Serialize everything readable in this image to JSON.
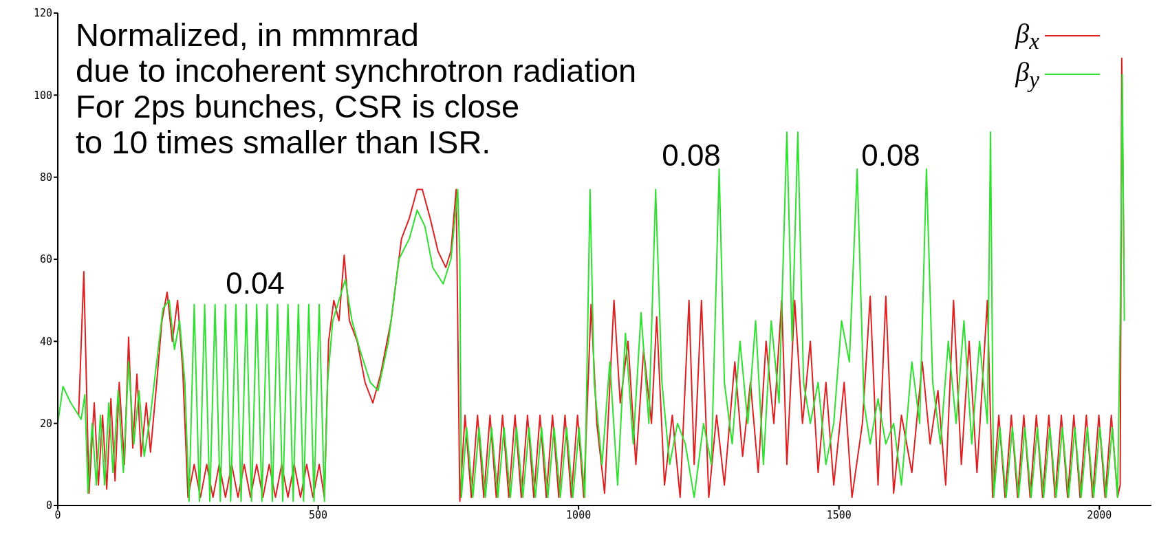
{
  "chart_data": {
    "type": "line",
    "xlim": [
      0,
      2100
    ],
    "xticks": [
      0,
      500,
      1000,
      1500,
      2000
    ],
    "ylim": [
      0,
      120
    ],
    "yticks": [
      0,
      20,
      40,
      60,
      80,
      100,
      120
    ],
    "grid": false,
    "legend": "top right",
    "marker": "none",
    "line_style": "solid",
    "annotations": [
      "Normalized, in mmmrad",
      "due to incoherent synchrotron radiation",
      "For 2ps bunches, CSR is close",
      "to 10 times smaller than ISR.",
      "0.04",
      "0.08",
      "0.08"
    ],
    "series": [
      {
        "name": "β$_{x}$",
        "color": "#e02020",
        "x": [
          40,
          50,
          55,
          60,
          70,
          78,
          86,
          94,
          102,
          110,
          118,
          128,
          136,
          144,
          152,
          160,
          170,
          178,
          190,
          200,
          210,
          220,
          230,
          240,
          250,
          262,
          274,
          286,
          298,
          310,
          322,
          334,
          346,
          358,
          370,
          382,
          394,
          406,
          418,
          430,
          442,
          454,
          466,
          478,
          490,
          502,
          512,
          520,
          530,
          540,
          550,
          560,
          575,
          590,
          605,
          620,
          640,
          660,
          675,
          690,
          700,
          715,
          730,
          745,
          755,
          765,
          772,
          782,
          794,
          806,
          818,
          830,
          842,
          854,
          866,
          878,
          890,
          902,
          914,
          926,
          938,
          950,
          962,
          974,
          986,
          998,
          1010,
          1024,
          1035,
          1050,
          1068,
          1080,
          1095,
          1110,
          1125,
          1140,
          1150,
          1165,
          1180,
          1195,
          1212,
          1222,
          1236,
          1250,
          1265,
          1280,
          1300,
          1315,
          1330,
          1345,
          1360,
          1375,
          1390,
          1400,
          1415,
          1430,
          1445,
          1460,
          1475,
          1490,
          1510,
          1525,
          1545,
          1560,
          1575,
          1590,
          1605,
          1620,
          1640,
          1660,
          1675,
          1690,
          1705,
          1720,
          1735,
          1750,
          1765,
          1785,
          1795,
          1807,
          1819,
          1831,
          1843,
          1855,
          1867,
          1879,
          1891,
          1903,
          1915,
          1927,
          1939,
          1951,
          1963,
          1975,
          1987,
          1999,
          2011,
          2023,
          2035,
          2040,
          2043,
          2047
        ],
        "values": [
          22,
          57,
          30,
          3,
          25,
          5,
          22,
          4,
          26,
          6,
          30,
          10,
          41,
          14,
          32,
          12,
          25,
          13,
          30,
          45,
          52,
          40,
          50,
          33,
          2,
          10,
          2,
          10,
          2,
          10,
          2,
          10,
          2,
          10,
          2,
          10,
          2,
          10,
          2,
          10,
          2,
          10,
          2,
          10,
          2,
          10,
          2,
          40,
          50,
          45,
          61,
          45,
          40,
          30,
          25,
          32,
          45,
          65,
          70,
          77,
          77,
          70,
          62,
          58,
          62,
          77,
          1,
          22,
          2,
          22,
          2,
          22,
          2,
          22,
          2,
          22,
          2,
          22,
          2,
          22,
          2,
          22,
          2,
          22,
          2,
          22,
          2,
          49,
          20,
          3,
          50,
          25,
          40,
          10,
          38,
          20,
          46,
          5,
          22,
          2,
          50,
          10,
          50,
          2,
          22,
          5,
          35,
          12,
          30,
          8,
          40,
          20,
          50,
          10,
          50,
          20,
          40,
          8,
          30,
          5,
          30,
          2,
          20,
          51,
          5,
          51,
          3,
          22,
          8,
          35,
          15,
          28,
          5,
          50,
          10,
          40,
          8,
          50,
          2,
          22,
          2,
          22,
          2,
          22,
          2,
          22,
          2,
          22,
          2,
          22,
          2,
          22,
          2,
          22,
          2,
          22,
          2,
          22,
          2,
          5,
          109,
          60
        ]
      },
      {
        "name": "β$_{y}$",
        "color": "#30e030",
        "x": [
          0,
          10,
          25,
          45,
          52,
          58,
          66,
          74,
          82,
          90,
          98,
          106,
          116,
          126,
          136,
          146,
          156,
          166,
          178,
          190,
          202,
          214,
          224,
          234,
          244,
          252,
          262,
          272,
          282,
          292,
          302,
          312,
          322,
          332,
          342,
          352,
          362,
          372,
          382,
          392,
          402,
          412,
          422,
          432,
          442,
          452,
          462,
          472,
          482,
          492,
          502,
          512,
          518,
          528,
          540,
          552,
          565,
          580,
          600,
          615,
          635,
          655,
          675,
          690,
          705,
          720,
          740,
          755,
          768,
          772,
          775,
          785,
          797,
          809,
          821,
          833,
          845,
          857,
          869,
          881,
          893,
          905,
          917,
          929,
          941,
          953,
          965,
          977,
          989,
          1001,
          1012,
          1022,
          1030,
          1045,
          1060,
          1075,
          1090,
          1105,
          1120,
          1135,
          1148,
          1160,
          1175,
          1190,
          1205,
          1222,
          1240,
          1255,
          1270,
          1280,
          1295,
          1310,
          1325,
          1340,
          1355,
          1370,
          1385,
          1400,
          1410,
          1421,
          1432,
          1445,
          1460,
          1475,
          1490,
          1505,
          1520,
          1535,
          1548,
          1560,
          1575,
          1590,
          1605,
          1620,
          1640,
          1655,
          1668,
          1680,
          1695,
          1710,
          1725,
          1740,
          1755,
          1770,
          1785,
          1791,
          1797,
          1809,
          1821,
          1833,
          1845,
          1857,
          1869,
          1881,
          1893,
          1905,
          1917,
          1929,
          1941,
          1953,
          1965,
          1977,
          1989,
          2001,
          2013,
          2025,
          2035,
          2040,
          2044,
          2048
        ],
        "values": [
          20,
          29,
          25,
          21,
          27,
          3,
          20,
          5,
          22,
          5,
          25,
          8,
          28,
          8,
          35,
          15,
          28,
          12,
          22,
          35,
          48,
          50,
          38,
          45,
          30,
          1,
          49,
          1,
          49,
          1,
          49,
          1,
          49,
          1,
          49,
          1,
          49,
          1,
          49,
          1,
          49,
          1,
          49,
          1,
          49,
          1,
          49,
          1,
          49,
          1,
          49,
          1,
          30,
          45,
          50,
          55,
          45,
          38,
          30,
          28,
          40,
          60,
          65,
          72,
          68,
          58,
          54,
          60,
          77,
          60,
          2,
          19,
          2,
          19,
          2,
          19,
          2,
          19,
          2,
          19,
          2,
          19,
          2,
          19,
          2,
          19,
          2,
          19,
          2,
          19,
          2,
          77,
          30,
          10,
          35,
          5,
          42,
          15,
          47,
          20,
          77,
          30,
          10,
          20,
          15,
          2,
          20,
          10,
          82,
          30,
          15,
          40,
          20,
          45,
          10,
          45,
          25,
          91,
          40,
          91,
          30,
          20,
          30,
          10,
          20,
          45,
          35,
          82,
          25,
          15,
          26,
          15,
          20,
          5,
          35,
          20,
          82,
          30,
          15,
          40,
          20,
          45,
          15,
          40,
          20,
          91,
          2,
          19,
          2,
          19,
          2,
          19,
          2,
          19,
          2,
          19,
          2,
          19,
          2,
          19,
          2,
          19,
          2,
          19,
          2,
          19,
          2,
          45,
          105,
          45
        ]
      }
    ]
  }
}
